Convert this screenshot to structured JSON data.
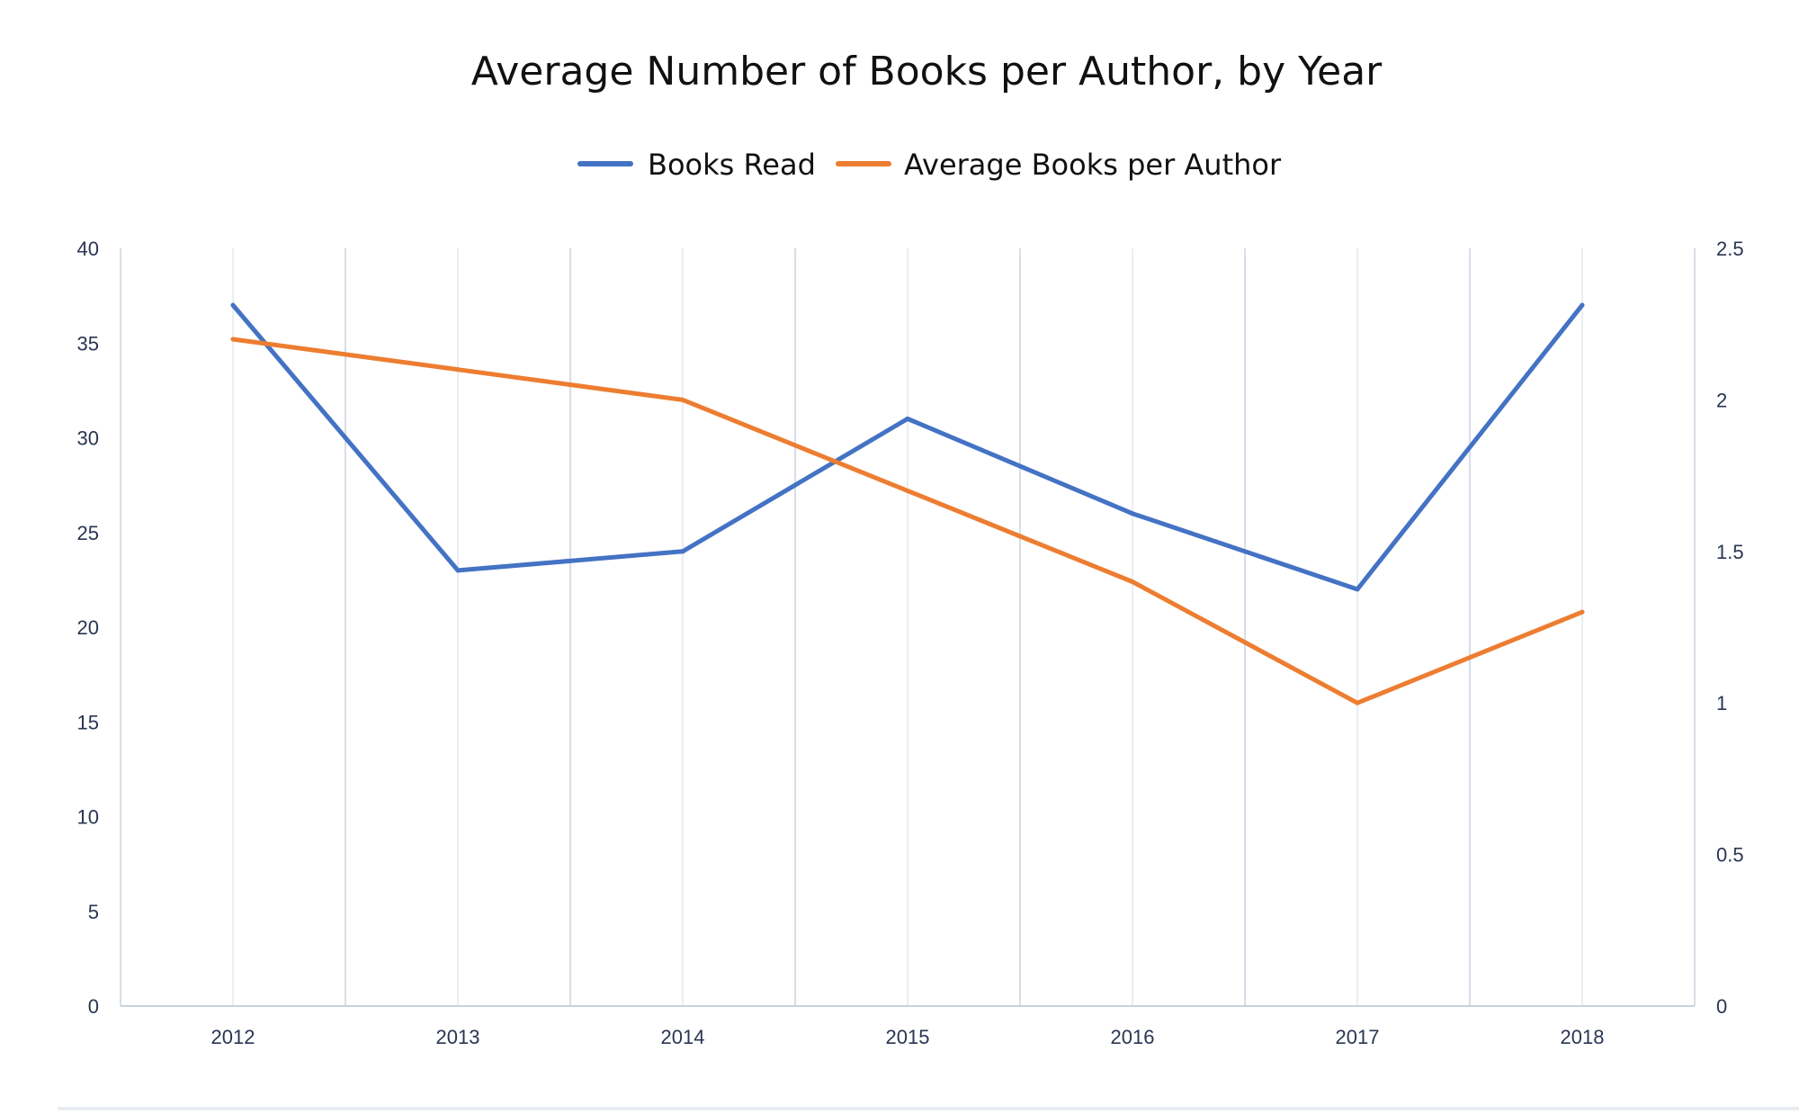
{
  "chart_data": {
    "type": "line",
    "title": "Average Number of Books per Author, by Year",
    "categories": [
      "2012",
      "2013",
      "2014",
      "2015",
      "2016",
      "2017",
      "2018"
    ],
    "series": [
      {
        "name": "Books Read",
        "axis": "left",
        "color": "#4472C4",
        "values": [
          37,
          23,
          24,
          31,
          26,
          22,
          37
        ]
      },
      {
        "name": "Average Books per Author",
        "axis": "right",
        "color": "#ED7D31",
        "values": [
          2.2,
          2.1,
          2.0,
          1.7,
          1.4,
          1.0,
          1.3
        ]
      }
    ],
    "y_left": {
      "ylim": [
        0,
        40
      ],
      "ticks": [
        "0",
        "5",
        "10",
        "15",
        "20",
        "25",
        "30",
        "35",
        "40"
      ]
    },
    "y_right": {
      "ylim": [
        0,
        2.5
      ],
      "ticks": [
        "0",
        "0.5",
        "1",
        "1.5",
        "2",
        "2.5"
      ]
    },
    "legend_position": "top-center",
    "grid": "vertical",
    "colors": {
      "gridline": "#d6dee8",
      "axis": "#c9d2dc",
      "tick_text": "#2a3552",
      "title_text": "#111111"
    }
  }
}
